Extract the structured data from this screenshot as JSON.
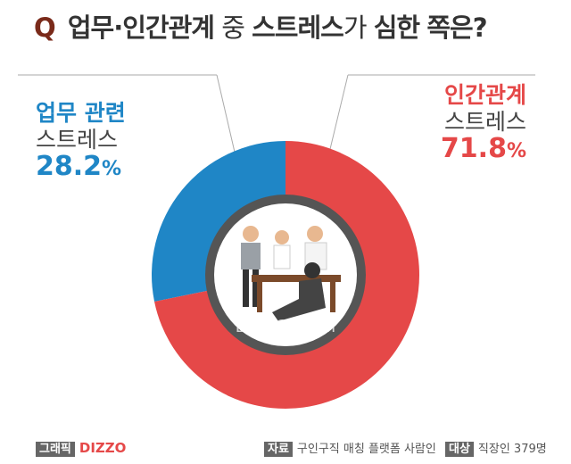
{
  "title": {
    "q": "Q",
    "part1": "업무·인간관계",
    "part2": "중",
    "part3": "스트레스",
    "part4": "가",
    "part5": "심한",
    "part6": "쪽은?"
  },
  "chart_data": {
    "type": "pie",
    "donut": true,
    "categories": [
      "업무 관련 스트레스",
      "인간관계 스트레스"
    ],
    "values": [
      28.2,
      71.8
    ],
    "unit": "%",
    "colors": [
      "#1f86c6",
      "#e54848"
    ]
  },
  "labels": {
    "left": {
      "line1": "업무 관련",
      "line2": "스트레스",
      "value": "28.2",
      "unit": "%"
    },
    "right": {
      "line1": "인간관계",
      "line2": "스트레스",
      "value": "71.8",
      "unit": "%"
    }
  },
  "watermark": "DIZZO.COM",
  "footer": {
    "graphic_tag": "그래픽",
    "brand": "DIZZO",
    "source_tag": "자료",
    "source": "구인구직 매칭 플랫폼 사람인",
    "target_tag": "대상",
    "target": "직장인 379명"
  }
}
